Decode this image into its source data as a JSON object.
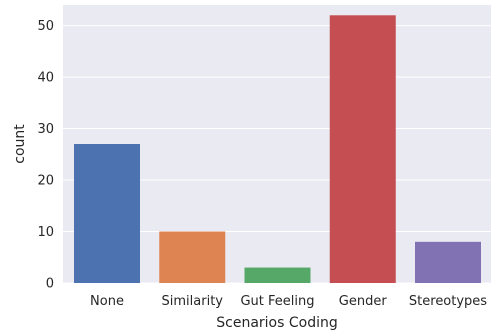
{
  "chart_data": {
    "type": "bar",
    "title": "",
    "xlabel": "Scenarios Coding",
    "ylabel": "count",
    "categories": [
      "None",
      "Similarity",
      "Gut Feeling",
      "Gender",
      "Stereotypes"
    ],
    "values": [
      27,
      10,
      3,
      52,
      8
    ],
    "colors": [
      "#4c72b0",
      "#dd8452",
      "#55a868",
      "#c44e52",
      "#8172b3"
    ],
    "ylim": [
      0,
      54
    ],
    "yticks": [
      0,
      10,
      20,
      30,
      40,
      50
    ],
    "grid": true,
    "background": "#eaeaf2",
    "legend": "none"
  }
}
